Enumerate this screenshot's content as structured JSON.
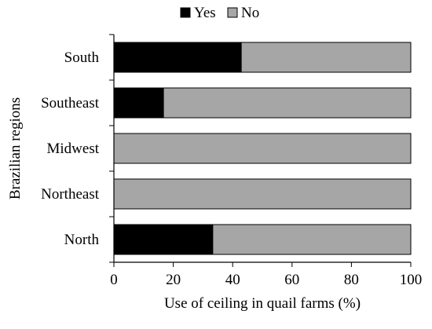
{
  "chart_data": {
    "type": "bar",
    "orientation": "horizontal",
    "stacked": true,
    "categories": [
      "South",
      "Southeast",
      "Midwest",
      "Northeast",
      "North"
    ],
    "series": [
      {
        "name": "Yes",
        "values": [
          42.9,
          16.7,
          0,
          0,
          33.3
        ],
        "color": "#000000"
      },
      {
        "name": "No",
        "values": [
          57.1,
          83.3,
          100,
          100,
          66.7
        ],
        "color": "#a6a6a6"
      }
    ],
    "xlabel": "Use of ceiling in quail farms (%)",
    "ylabel": "Brazilian regions",
    "xlim": [
      0,
      100
    ],
    "xticks": [
      "0",
      "20",
      "40",
      "60",
      "80",
      "100"
    ],
    "grid": false,
    "legend": "top"
  }
}
